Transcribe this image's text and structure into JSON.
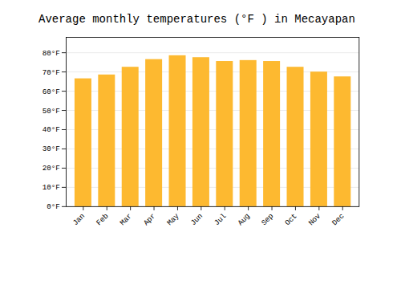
{
  "chart_data": {
    "type": "bar",
    "title": "Average monthly temperatures (°F ) in Mecayapan",
    "categories": [
      "Jan",
      "Feb",
      "Mar",
      "Apr",
      "May",
      "Jun",
      "Jul",
      "Aug",
      "Sep",
      "Oct",
      "Nov",
      "Dec"
    ],
    "values": [
      66.5,
      68.5,
      72.5,
      76.5,
      78.5,
      77.5,
      75.5,
      76.0,
      75.5,
      72.5,
      70.0,
      67.5
    ],
    "color": "#FDB930",
    "ylim": [
      0,
      88
    ],
    "yticks": [
      {
        "value": 0,
        "label": "0°F"
      },
      {
        "value": 10,
        "label": "10°F"
      },
      {
        "value": 20,
        "label": "20°F"
      },
      {
        "value": 30,
        "label": "30°F"
      },
      {
        "value": 40,
        "label": "40°F"
      },
      {
        "value": 50,
        "label": "50°F"
      },
      {
        "value": 60,
        "label": "60°F"
      },
      {
        "value": 70,
        "label": "70°F"
      },
      {
        "value": 80,
        "label": "80°F"
      }
    ],
    "grid": true
  }
}
